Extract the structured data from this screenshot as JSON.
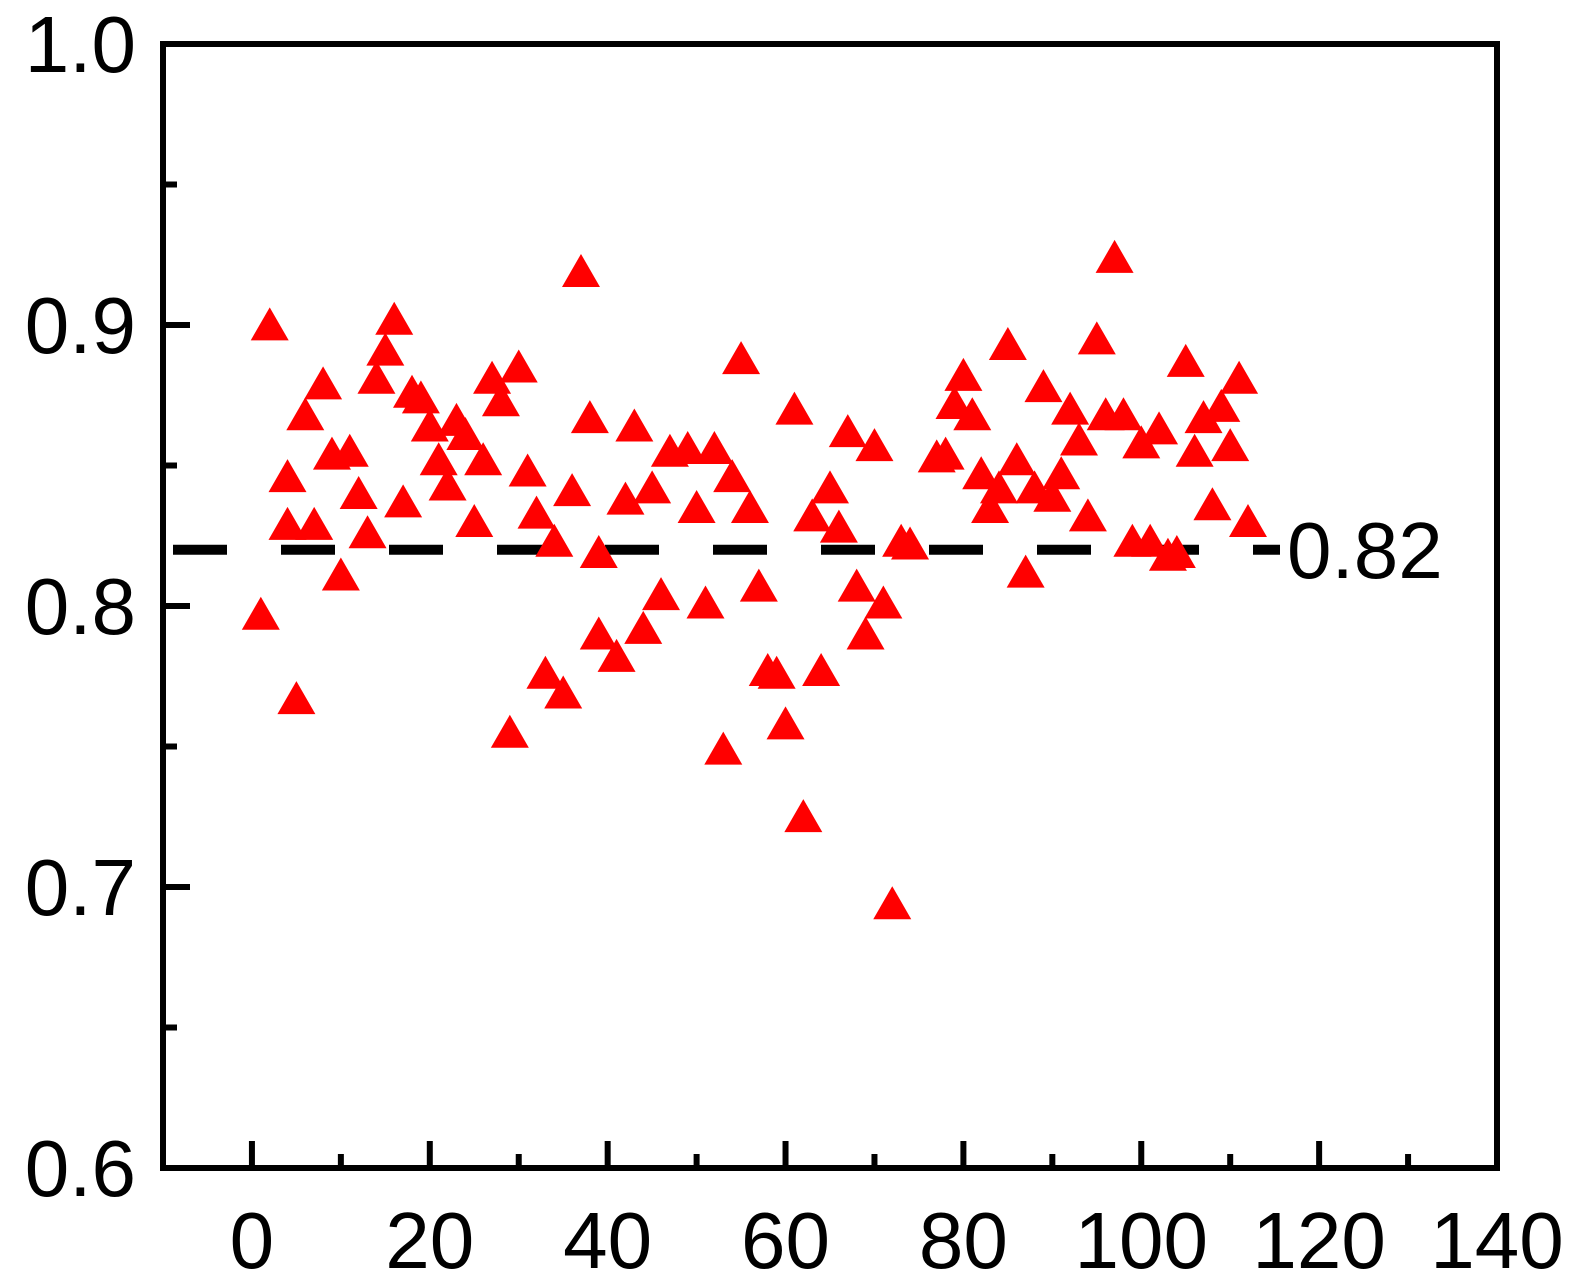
{
  "chart_data": {
    "type": "scatter",
    "title": "",
    "xlabel": "",
    "ylabel": "",
    "xlim": [
      -10,
      140
    ],
    "ylim": [
      0.6,
      1.0
    ],
    "x_ticks": [
      0,
      20,
      40,
      60,
      80,
      100,
      120,
      140
    ],
    "x_tick_labels": [
      "0",
      "20",
      "40",
      "60",
      "80",
      "100",
      "120",
      "140"
    ],
    "x_minor_ticks": [
      10,
      30,
      50,
      70,
      90,
      110,
      130
    ],
    "y_ticks": [
      0.6,
      0.7,
      0.8,
      0.9,
      1.0
    ],
    "y_tick_labels": [
      "0.6",
      "0.7",
      "0.8",
      "0.9",
      "1.0"
    ],
    "y_minor_ticks": [
      0.65,
      0.75,
      0.85,
      0.95
    ],
    "grid": false,
    "marker": "triangle-up",
    "marker_color": "#ff0000",
    "reference_line": {
      "y": 0.82,
      "label": "0.82",
      "style": "dashed",
      "color": "#000000"
    },
    "series": [
      {
        "points": [
          [
            1,
            0.796
          ],
          [
            2,
            0.899
          ],
          [
            4,
            0.828
          ],
          [
            4,
            0.845
          ],
          [
            5,
            0.766
          ],
          [
            6,
            0.867
          ],
          [
            7,
            0.828
          ],
          [
            8,
            0.878
          ],
          [
            9,
            0.853
          ],
          [
            10,
            0.81
          ],
          [
            11,
            0.854
          ],
          [
            12,
            0.839
          ],
          [
            13,
            0.825
          ],
          [
            14,
            0.88
          ],
          [
            15,
            0.89
          ],
          [
            16,
            0.901
          ],
          [
            17,
            0.836
          ],
          [
            18,
            0.875
          ],
          [
            19,
            0.873
          ],
          [
            20,
            0.863
          ],
          [
            21,
            0.851
          ],
          [
            22,
            0.842
          ],
          [
            23,
            0.865
          ],
          [
            24,
            0.86
          ],
          [
            25,
            0.829
          ],
          [
            26,
            0.851
          ],
          [
            27,
            0.88
          ],
          [
            28,
            0.872
          ],
          [
            29,
            0.754
          ],
          [
            30,
            0.884
          ],
          [
            31,
            0.847
          ],
          [
            32,
            0.832
          ],
          [
            33,
            0.775
          ],
          [
            34,
            0.822
          ],
          [
            35,
            0.768
          ],
          [
            36,
            0.84
          ],
          [
            37,
            0.918
          ],
          [
            38,
            0.866
          ],
          [
            39,
            0.818
          ],
          [
            39,
            0.789
          ],
          [
            41,
            0.781
          ],
          [
            42,
            0.837
          ],
          [
            43,
            0.863
          ],
          [
            44,
            0.791
          ],
          [
            45,
            0.841
          ],
          [
            46,
            0.803
          ],
          [
            47,
            0.854
          ],
          [
            49,
            0.855
          ],
          [
            50,
            0.834
          ],
          [
            51,
            0.8
          ],
          [
            52,
            0.855
          ],
          [
            53,
            0.748
          ],
          [
            54,
            0.845
          ],
          [
            55,
            0.887
          ],
          [
            56,
            0.834
          ],
          [
            57,
            0.806
          ],
          [
            58,
            0.776
          ],
          [
            59,
            0.775
          ],
          [
            60,
            0.757
          ],
          [
            61,
            0.869
          ],
          [
            62,
            0.724
          ],
          [
            63,
            0.831
          ],
          [
            64,
            0.776
          ],
          [
            65,
            0.841
          ],
          [
            66,
            0.827
          ],
          [
            67,
            0.861
          ],
          [
            68,
            0.806
          ],
          [
            69,
            0.789
          ],
          [
            70,
            0.856
          ],
          [
            71,
            0.8
          ],
          [
            72,
            0.693
          ],
          [
            73,
            0.822
          ],
          [
            74,
            0.821
          ],
          [
            77,
            0.852
          ],
          [
            78,
            0.853
          ],
          [
            79,
            0.871
          ],
          [
            80,
            0.881
          ],
          [
            81,
            0.867
          ],
          [
            82,
            0.846
          ],
          [
            83,
            0.834
          ],
          [
            84,
            0.841
          ],
          [
            85,
            0.892
          ],
          [
            86,
            0.851
          ],
          [
            87,
            0.811
          ],
          [
            88,
            0.841
          ],
          [
            89,
            0.877
          ],
          [
            90,
            0.838
          ],
          [
            91,
            0.846
          ],
          [
            92,
            0.869
          ],
          [
            93,
            0.858
          ],
          [
            94,
            0.831
          ],
          [
            95,
            0.894
          ],
          [
            96,
            0.867
          ],
          [
            97,
            0.923
          ],
          [
            98,
            0.867
          ],
          [
            99,
            0.822
          ],
          [
            100,
            0.857
          ],
          [
            101,
            0.822
          ],
          [
            102,
            0.862
          ],
          [
            103,
            0.817
          ],
          [
            104,
            0.818
          ],
          [
            105,
            0.886
          ],
          [
            106,
            0.854
          ],
          [
            107,
            0.866
          ],
          [
            108,
            0.835
          ],
          [
            109,
            0.87
          ],
          [
            110,
            0.856
          ],
          [
            111,
            0.88
          ],
          [
            112,
            0.829
          ]
        ]
      }
    ]
  }
}
